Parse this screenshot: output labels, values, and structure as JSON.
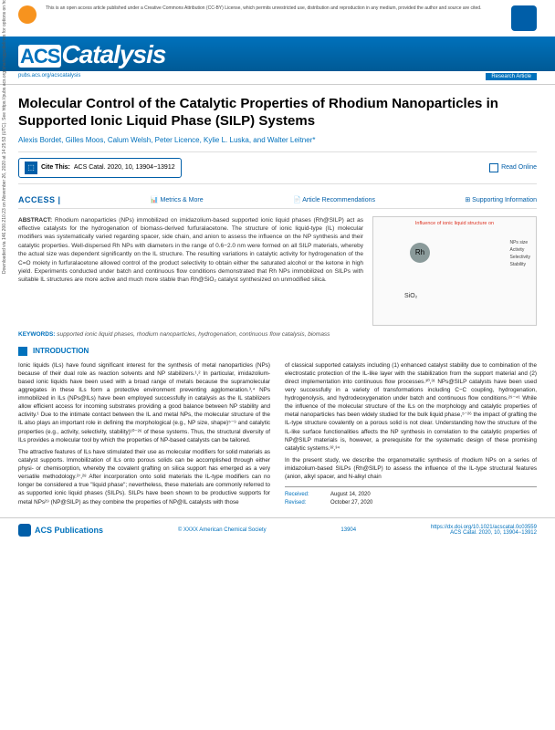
{
  "openAccess": "This is an open access article published under a Creative Commons Attribution (CC-BY) License, which permits unrestricted use, distribution and reproduction in any medium, provided the author and source are cited.",
  "journal": {
    "acs": "ACS",
    "name": "Catalysis"
  },
  "subbar": {
    "url": "pubs.acs.org/acscatalysis",
    "type": "Research Article"
  },
  "title": "Molecular Control of the Catalytic Properties of Rhodium Nanoparticles in Supported Ionic Liquid Phase (SILP) Systems",
  "authors": "Alexis Bordet, Gilles Moos, Calum Welsh, Peter Licence, Kylie L. Luska, and Walter Leitner*",
  "cite": {
    "label": "Cite This:",
    "ref": "ACS Catal. 2020, 10, 13904−13912"
  },
  "readOnline": "Read Online",
  "access": {
    "badge": "ACCESS |",
    "metrics": "Metrics & More",
    "recs": "Article Recommendations",
    "si": "Supporting Information"
  },
  "abstract": {
    "label": "ABSTRACT:",
    "text": "Rhodium nanoparticles (NPs) immobilized on imidazolium-based supported ionic liquid phases (Rh@SILP) act as effective catalysts for the hydrogenation of biomass-derived furfuralacetone. The structure of ionic liquid-type (IL) molecular modifiers was systematically varied regarding spacer, side chain, and anion to assess the influence on the NP synthesis and their catalytic properties. Well-dispersed Rh NPs with diameters in the range of 0.6−2.0 nm were formed on all SILP materials, whereby the actual size was dependent significantly on the IL structure. The resulting variations in catalytic activity for hydrogenation of the C=O moiety in furfuralacetone allowed control of the product selectivity to obtain either the saturated alcohol or the ketone in high yield. Experiments conducted under batch and continuous flow conditions demonstrated that Rh NPs immobilized on SILPs with suitable IL structures are more active and much more stable than Rh@SiO₂ catalyst synthesized on unmodified silica."
  },
  "figure": {
    "title": "Influence of ionic liquid structure on",
    "center": "Rh",
    "sio": "SiO₂",
    "labels": [
      "NPs size",
      "Activity",
      "Selectivity",
      "Stability"
    ]
  },
  "keywords": {
    "label": "KEYWORDS:",
    "text": "supported ionic liquid phases, rhodium nanoparticles, hydrogenation, continuous flow catalysis, biomass"
  },
  "introHeader": "INTRODUCTION",
  "col1": {
    "p1": "Ionic liquids (ILs) have found significant interest for the synthesis of metal nanoparticles (NPs) because of their dual role as reaction solvents and NP stabilizers.¹,² In particular, imidazolium-based ionic liquids have been used with a broad range of metals because the supramolecular aggregates in these ILs form a protective environment preventing agglomeration.³,⁴ NPs immobilized in ILs (NPs@ILs) have been employed successfully in catalysis as the IL stabilizers allow efficient access for incoming substrates providing a good balance between NP stability and activity.¹ Due to the intimate contact between the IL and metal NPs, the molecular structure of the IL also plays an important role in defining the morphological (e.g., NP size, shape)⁵⁻⁹ and catalytic properties (e.g., activity, selectivity, stability)¹⁰⁻²⁶ of these systems. Thus, the structural diversity of ILs provides a molecular tool by which the properties of NP-based catalysts can be tailored.",
    "p2": "The attractive features of ILs have stimulated their use as molecular modifiers for solid materials as catalyst supports. Immobilization of ILs onto porous solids can be accomplished through either physi- or chemisorption, whereby the covalent grafting on silica support has emerged as a very versatile methodology.²⁷,²⁸ After incorporation onto solid materials the IL-type modifiers can no longer be considered a true \"liquid phase\"; nevertheless, these materials are commonly referred to as supported ionic liquid phases (SILPs). SILPs have been shown to be productive supports for metal NPs²⁹ (NP@SILP) as they combine the properties of NP@IL catalysts with those"
  },
  "col2": {
    "p1": "of classical supported catalysts including (1) enhanced catalyst stability due to combination of the electrostatic protection of the IL-like layer with the stabilization from the support material and (2) direct implementation into continuous flow processes.³⁰,³¹ NPs@SILP catalysts have been used very successfully in a variety of transformations including C−C coupling, hydrogenation, hydrogenolysis, and hydrodeoxygenation under batch and continuous flow conditions.²⁹⁻⁴¹ While the influence of the molecular structure of the ILs on the morphology and catalytic properties of metal nanoparticles has been widely studied for the bulk liquid phase,⁵⁻²⁶ the impact of grafting the IL-type structure covalently on a porous solid is not clear. Understanding how the structure of the IL-like surface functionalities affects the NP synthesis in correlation to the catalytic properties of NP@SILP materials is, however, a prerequisite for the systematic design of these promising catalytic systems.³²,³⁴",
    "p2": "In the present study, we describe the organometallic synthesis of rhodium NPs on a series of imidazolium-based SILPs (Rh@SILP) to assess the influence of the IL-type structural features (anion, alkyl spacer, and N-alkyl chain"
  },
  "dates": {
    "received": {
      "label": "Received:",
      "value": "August 14, 2020"
    },
    "revised": {
      "label": "Revised:",
      "value": "October 27, 2020"
    }
  },
  "footer": {
    "logo": "ACS Publications",
    "copyright": "© XXXX American Chemical Society",
    "page": "13904",
    "doi": "https://dx.doi.org/10.1021/acscatal.0c03559",
    "ref": "ACS Catal. 2020, 10, 13904−13912"
  },
  "sidebar": "Downloaded via 146.200.210.23 on November 26, 2020 at 14:25:53 (UTC). See https://pubs.acs.org/sharingguidelines for options on how to legitimately share published articles."
}
